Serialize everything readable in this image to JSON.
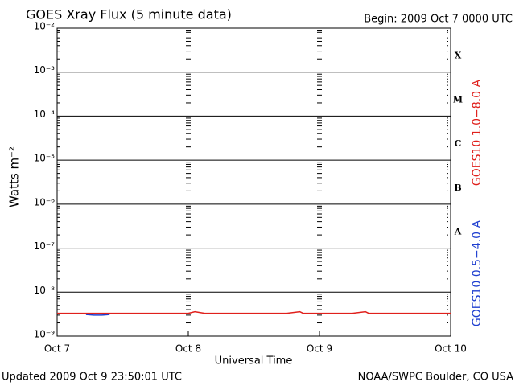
{
  "chart_data": {
    "type": "line",
    "title": "GOES Xray Flux (5 minute data)",
    "subtitle": "Begin:  2009 Oct 7 0000 UTC",
    "xlabel": "Universal Time",
    "ylabel": "Watts m⁻²",
    "footer_left": "Updated 2009 Oct  9 23:50:01 UTC",
    "footer_right": "NOAA/SWPC Boulder, CO USA",
    "log_y": true,
    "grid": true,
    "xlim": [
      0,
      3
    ],
    "xticks": [
      {
        "value": 0,
        "label": "Oct 7"
      },
      {
        "value": 1,
        "label": "Oct 8"
      },
      {
        "value": 2,
        "label": "Oct 9"
      },
      {
        "value": 3,
        "label": "Oct 10"
      }
    ],
    "ylim": [
      1e-09,
      0.01
    ],
    "yticks": [
      {
        "value": 1e-09,
        "label": "10⁻⁹"
      },
      {
        "value": 1e-08,
        "label": "10⁻⁸"
      },
      {
        "value": 1e-07,
        "label": "10⁻⁷"
      },
      {
        "value": 1e-06,
        "label": "10⁻⁶"
      },
      {
        "value": 1e-05,
        "label": "10⁻⁵"
      },
      {
        "value": 0.0001,
        "label": "10⁻⁴"
      },
      {
        "value": 0.001,
        "label": "10⁻³"
      },
      {
        "value": 0.01,
        "label": "10⁻²"
      }
    ],
    "flare_classes": [
      {
        "label": "A",
        "value": 1e-07
      },
      {
        "label": "B",
        "value": 1e-06
      },
      {
        "label": "C",
        "value": 1e-05
      },
      {
        "label": "M",
        "value": 0.0001
      },
      {
        "label": "X",
        "value": 0.001
      }
    ],
    "series": [
      {
        "name": "GOES10 1.0−8.0 A",
        "color": "#e0201c",
        "x": [
          0,
          0.125,
          0.25,
          0.375,
          0.5,
          0.625,
          0.75,
          0.875,
          1,
          1.05,
          1.125,
          1.25,
          1.375,
          1.5,
          1.625,
          1.75,
          1.85,
          1.875,
          2,
          2.125,
          2.25,
          2.35,
          2.375,
          2.5,
          2.625,
          2.75,
          2.875,
          3
        ],
        "values": [
          3.3e-09,
          3.3e-09,
          3.3e-09,
          3.3e-09,
          3.3e-09,
          3.3e-09,
          3.3e-09,
          3.3e-09,
          3.3e-09,
          3.6e-09,
          3.3e-09,
          3.3e-09,
          3.3e-09,
          3.3e-09,
          3.3e-09,
          3.3e-09,
          3.6e-09,
          3.3e-09,
          3.3e-09,
          3.3e-09,
          3.3e-09,
          3.6e-09,
          3.3e-09,
          3.3e-09,
          3.3e-09,
          3.3e-09,
          3.3e-09,
          3.3e-09
        ]
      },
      {
        "name": "GOES10 0.5−4.0 A",
        "color": "#2040d0",
        "x": [
          0.22,
          0.28,
          0.34,
          0.4
        ],
        "values": [
          3.1e-09,
          3e-09,
          3e-09,
          3.1e-09
        ]
      }
    ]
  }
}
